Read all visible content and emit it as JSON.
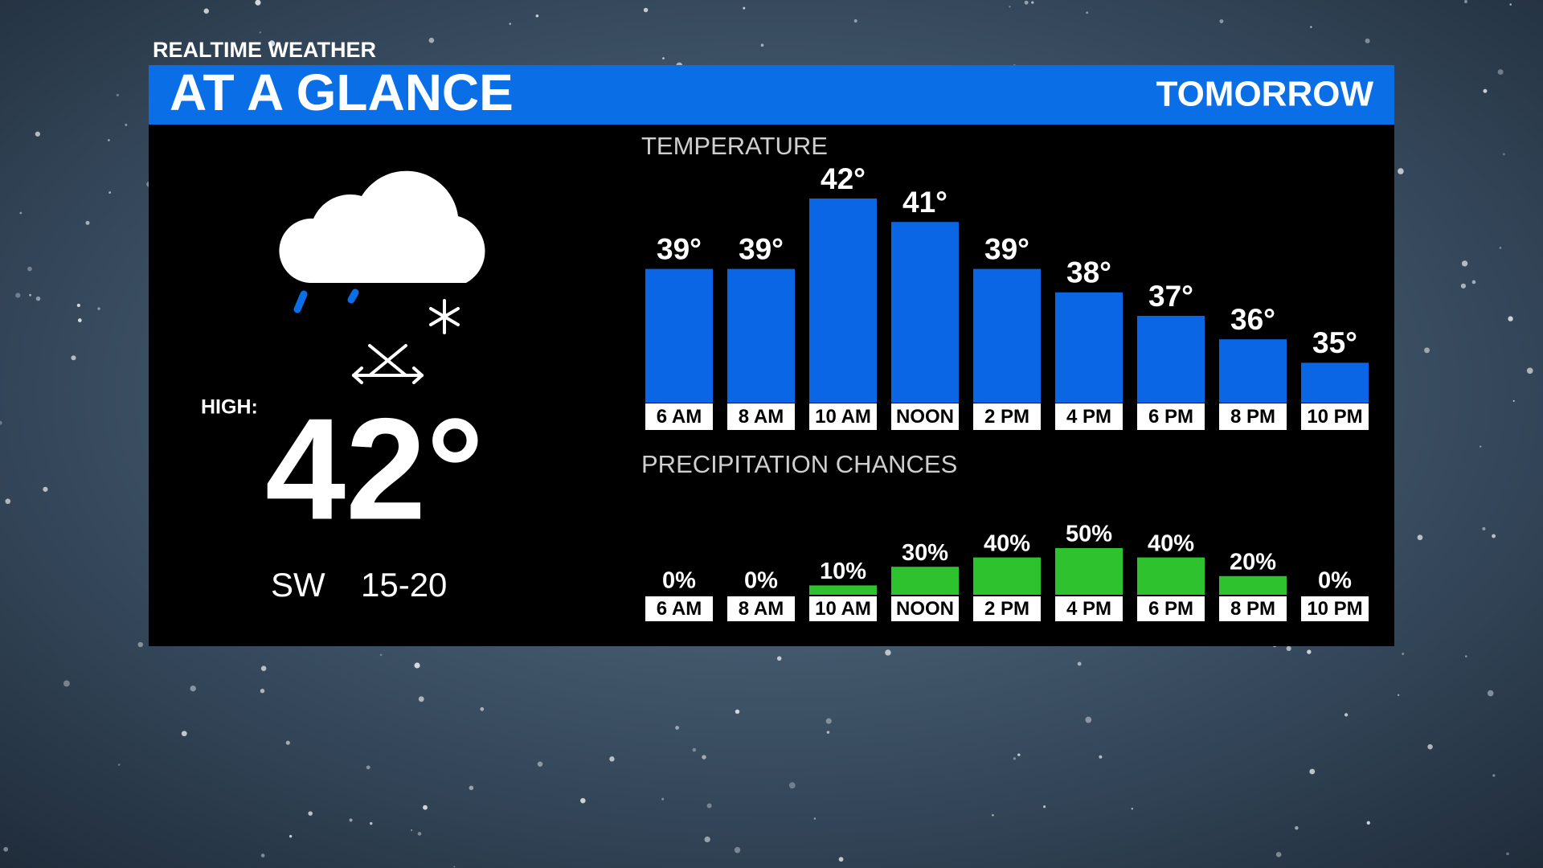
{
  "header": {
    "brand": "REALTIME WEATHER",
    "title": "AT A GLANCE",
    "day": "TOMORROW"
  },
  "summary": {
    "high_label": "HIGH:",
    "high": "42°",
    "wind_direction": "SW",
    "wind_speed": "15-20"
  },
  "chart_data": [
    {
      "type": "bar",
      "title": "TEMPERATURE",
      "categories": [
        "6 AM",
        "8 AM",
        "10 AM",
        "NOON",
        "2 PM",
        "4 PM",
        "6 PM",
        "8 PM",
        "10 PM"
      ],
      "values": [
        39,
        39,
        42,
        41,
        39,
        38,
        37,
        36,
        35
      ],
      "value_labels": [
        "39°",
        "39°",
        "42°",
        "41°",
        "39°",
        "38°",
        "37°",
        "36°",
        "35°"
      ],
      "color": "#0a66e4",
      "ylim": [
        33.3,
        42
      ]
    },
    {
      "type": "bar",
      "title": "PRECIPITATION CHANCES",
      "categories": [
        "6 AM",
        "8 AM",
        "10 AM",
        "NOON",
        "2 PM",
        "4 PM",
        "6 PM",
        "8 PM",
        "10 PM"
      ],
      "values": [
        0,
        0,
        10,
        30,
        40,
        50,
        40,
        20,
        0
      ],
      "value_labels": [
        "0%",
        "0%",
        "10%",
        "30%",
        "40%",
        "50%",
        "40%",
        "20%",
        "0%"
      ],
      "color": "#2ec22e",
      "ylim": [
        0,
        50
      ]
    }
  ]
}
